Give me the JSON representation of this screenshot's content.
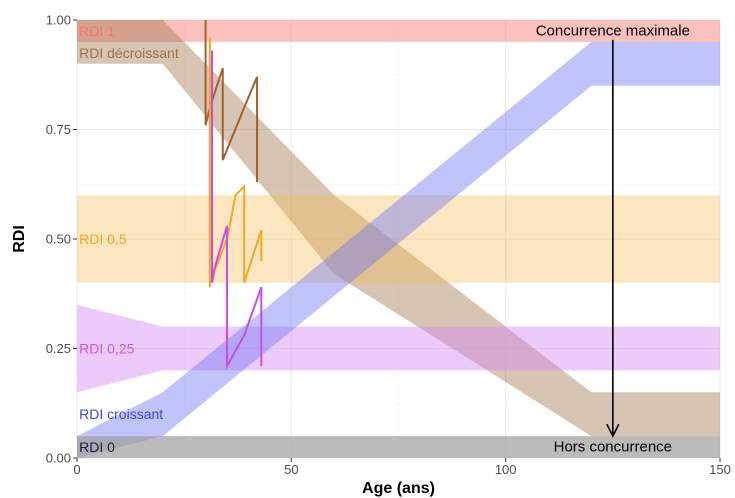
{
  "chart_data": {
    "type": "area",
    "xlabel": "Age (ans)",
    "ylabel": "RDI",
    "xlim": [
      0,
      150
    ],
    "ylim": [
      0,
      1
    ],
    "x_ticks": [
      0,
      50,
      100,
      150
    ],
    "y_ticks": [
      0,
      0.25,
      0.5,
      0.75,
      1
    ],
    "y_tick_labels": [
      "0.00",
      "0.25",
      "0.50",
      "0.75",
      "1.00"
    ],
    "grid": true,
    "background": "#ffffff",
    "bands": [
      {
        "name": "RDI 1",
        "color": "#f8766d",
        "opacity": 0.45,
        "label_color": "#f8766d",
        "label_x": 0.5,
        "label_y": 0.975,
        "x": [
          0,
          150
        ],
        "lower": [
          0.95,
          0.95
        ],
        "upper": [
          1.0,
          1.0
        ]
      },
      {
        "name": "RDI décroissant",
        "color": "#a0724a",
        "opacity": 0.42,
        "label_color": "#a0724a",
        "label_x": 0.5,
        "label_y": 0.925,
        "x": [
          0,
          20,
          60,
          120,
          150
        ],
        "lower": [
          0.9,
          0.9,
          0.42,
          0.05,
          0.05
        ],
        "upper": [
          1.0,
          1.0,
          0.6,
          0.15,
          0.15
        ]
      },
      {
        "name": "RDI 0,5",
        "color": "#f5bd56",
        "opacity": 0.38,
        "label_color": "#f5a623",
        "label_x": 0.5,
        "label_y": 0.5,
        "x": [
          0,
          150
        ],
        "lower": [
          0.4,
          0.4
        ],
        "upper": [
          0.6,
          0.6
        ]
      },
      {
        "name": "RDI 0,25",
        "color": "#d58cf5",
        "opacity": 0.45,
        "label_color": "#c45ae6",
        "label_x": 0.5,
        "label_y": 0.25,
        "x": [
          0,
          20,
          150
        ],
        "lower": [
          0.15,
          0.2,
          0.2
        ],
        "upper": [
          0.35,
          0.3,
          0.3
        ]
      },
      {
        "name": "RDI croissant",
        "color": "#6b73f5",
        "opacity": 0.42,
        "label_color": "#3b48e0",
        "label_x": 0.5,
        "label_y": 0.1,
        "x": [
          0,
          20,
          120,
          150
        ],
        "lower": [
          0.0,
          0.05,
          0.85,
          0.85
        ],
        "upper": [
          0.05,
          0.15,
          0.95,
          0.95
        ]
      },
      {
        "name": "RDI 0",
        "color": "#9e9e9e",
        "opacity": 0.7,
        "label_color": "#222222",
        "label_x": 0.5,
        "label_y": 0.025,
        "x": [
          0,
          150
        ],
        "lower": [
          0.0,
          0.0
        ],
        "upper": [
          0.05,
          0.05
        ]
      }
    ],
    "trajectories": [
      {
        "color": "#a0622d",
        "x": [
          30,
          30,
          31,
          34,
          34,
          39,
          42,
          42
        ],
        "y": [
          1.0,
          0.76,
          0.8,
          0.89,
          0.68,
          0.8,
          0.87,
          0.63
        ]
      },
      {
        "color": "#f5a623",
        "x": [
          31,
          31,
          31,
          35,
          37,
          39,
          39,
          43,
          43
        ],
        "y": [
          0.96,
          0.39,
          0.4,
          0.5,
          0.6,
          0.62,
          0.4,
          0.52,
          0.45
        ]
      },
      {
        "color": "#c64de8",
        "x": [
          31.5,
          31.5,
          32,
          35,
          35,
          39,
          43,
          43
        ],
        "y": [
          0.93,
          0.4,
          0.43,
          0.53,
          0.21,
          0.28,
          0.39,
          0.21
        ]
      }
    ],
    "annotations": [
      {
        "text": "Concurrence maximale",
        "x": 125,
        "y": 0.975,
        "anchor": "middle"
      },
      {
        "text": "Hors concurrence",
        "x": 125,
        "y": 0.025,
        "anchor": "middle"
      }
    ],
    "arrow": {
      "x": 125,
      "y_start": 0.955,
      "y_end": 0.05,
      "color": "#000000"
    }
  }
}
